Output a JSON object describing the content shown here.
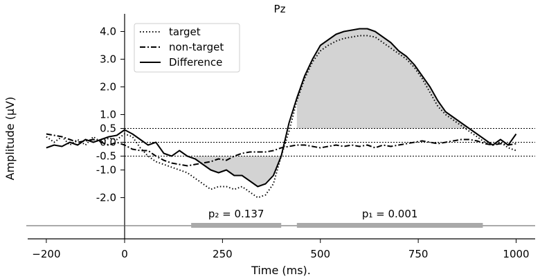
{
  "chart_data": {
    "type": "line",
    "title": "Pz",
    "xlabel": "Time (ms).",
    "ylabel": "Amplitude (µV)",
    "xlim": [
      -225,
      1050
    ],
    "ylim": [
      -3.5,
      4.3
    ],
    "x_ticks": [
      -200,
      0,
      250,
      500,
      750,
      1000
    ],
    "x_tick_labels": [
      "−200",
      "0",
      "250",
      "500",
      "750",
      "1000"
    ],
    "y_ticks": [
      4.0,
      3.0,
      2.0,
      1.0,
      0.5,
      0.0,
      -0.5,
      -1.0,
      -2.0
    ],
    "y_tick_labels": [
      "4.0",
      "3.0",
      "2.0",
      "1.0",
      "0.5",
      "0.0",
      "-0.5",
      "-1.0",
      "-2.0"
    ],
    "thresholds": [
      0.5,
      0.0,
      -0.5
    ],
    "legend_position": "top-left",
    "series": [
      {
        "name": "target",
        "style": "dotted",
        "x": [
          -200,
          -180,
          -160,
          -140,
          -120,
          -100,
          -80,
          -60,
          -40,
          -20,
          0,
          20,
          40,
          60,
          80,
          100,
          120,
          140,
          160,
          180,
          200,
          220,
          240,
          260,
          280,
          300,
          320,
          340,
          360,
          380,
          400,
          420,
          440,
          460,
          480,
          500,
          520,
          540,
          560,
          580,
          600,
          620,
          640,
          660,
          680,
          700,
          720,
          740,
          760,
          780,
          800,
          820,
          840,
          860,
          880,
          900,
          920,
          940,
          960,
          980,
          1000
        ],
        "y": [
          0.2,
          0.0,
          0.2,
          -0.1,
          0.1,
          -0.1,
          0.2,
          0.0,
          0.15,
          0.1,
          0.3,
          0.2,
          -0.2,
          -0.5,
          -0.7,
          -0.8,
          -0.9,
          -1.0,
          -1.1,
          -1.3,
          -1.5,
          -1.7,
          -1.6,
          -1.6,
          -1.7,
          -1.6,
          -1.8,
          -2.0,
          -1.9,
          -1.5,
          -0.5,
          0.4,
          1.5,
          2.3,
          2.9,
          3.3,
          3.5,
          3.65,
          3.75,
          3.8,
          3.85,
          3.85,
          3.8,
          3.6,
          3.4,
          3.2,
          3.0,
          2.7,
          2.3,
          1.8,
          1.3,
          1.0,
          0.8,
          0.6,
          0.4,
          0.2,
          0.0,
          -0.1,
          0.0,
          -0.2,
          -0.3
        ]
      },
      {
        "name": "non-target",
        "style": "dashdot",
        "x": [
          -200,
          -180,
          -160,
          -140,
          -120,
          -100,
          -80,
          -60,
          -40,
          -20,
          0,
          20,
          40,
          60,
          80,
          100,
          120,
          140,
          160,
          180,
          200,
          220,
          240,
          260,
          280,
          300,
          320,
          340,
          360,
          380,
          400,
          420,
          440,
          460,
          480,
          500,
          520,
          540,
          560,
          580,
          600,
          620,
          640,
          660,
          680,
          700,
          720,
          740,
          760,
          780,
          800,
          820,
          840,
          860,
          880,
          900,
          920,
          940,
          960,
          980,
          1000
        ],
        "y": [
          0.3,
          0.25,
          0.2,
          0.1,
          0.0,
          0.05,
          0.1,
          0.0,
          -0.1,
          0.0,
          -0.1,
          -0.25,
          -0.3,
          -0.3,
          -0.5,
          -0.65,
          -0.75,
          -0.8,
          -0.85,
          -0.8,
          -0.75,
          -0.7,
          -0.6,
          -0.65,
          -0.5,
          -0.4,
          -0.35,
          -0.35,
          -0.35,
          -0.3,
          -0.2,
          -0.15,
          -0.1,
          -0.1,
          -0.15,
          -0.2,
          -0.15,
          -0.1,
          -0.15,
          -0.1,
          -0.15,
          -0.1,
          -0.2,
          -0.1,
          -0.15,
          -0.1,
          -0.05,
          0.0,
          0.05,
          0.0,
          -0.05,
          0.0,
          0.05,
          0.1,
          0.1,
          0.05,
          -0.05,
          -0.1,
          -0.05,
          -0.1,
          -0.05
        ]
      },
      {
        "name": "Difference",
        "style": "solid",
        "x": [
          -200,
          -180,
          -160,
          -140,
          -120,
          -100,
          -80,
          -60,
          -40,
          -20,
          0,
          20,
          40,
          60,
          80,
          100,
          120,
          140,
          160,
          180,
          200,
          220,
          240,
          260,
          280,
          300,
          320,
          340,
          360,
          380,
          400,
          420,
          440,
          460,
          480,
          500,
          520,
          540,
          560,
          580,
          600,
          620,
          640,
          660,
          680,
          700,
          720,
          740,
          760,
          780,
          800,
          820,
          840,
          860,
          880,
          900,
          920,
          940,
          960,
          980,
          1000
        ],
        "y": [
          -0.2,
          -0.1,
          -0.15,
          0.0,
          -0.1,
          0.1,
          0.0,
          0.1,
          0.2,
          0.25,
          0.45,
          0.3,
          0.1,
          -0.1,
          0.0,
          -0.4,
          -0.5,
          -0.3,
          -0.5,
          -0.6,
          -0.8,
          -1.0,
          -1.1,
          -1.0,
          -1.2,
          -1.2,
          -1.4,
          -1.6,
          -1.5,
          -1.2,
          -0.5,
          0.7,
          1.6,
          2.4,
          3.0,
          3.5,
          3.7,
          3.9,
          4.0,
          4.05,
          4.1,
          4.1,
          4.0,
          3.8,
          3.6,
          3.3,
          3.1,
          2.8,
          2.4,
          2.0,
          1.5,
          1.1,
          0.9,
          0.7,
          0.5,
          0.3,
          0.1,
          -0.1,
          0.1,
          -0.1,
          0.3
        ]
      }
    ],
    "significance": [
      {
        "label": "p₂ = 0.137",
        "x_start": 170,
        "x_end": 400
      },
      {
        "label": "p₁ = 0.001",
        "x_start": 440,
        "x_end": 915
      }
    ]
  }
}
